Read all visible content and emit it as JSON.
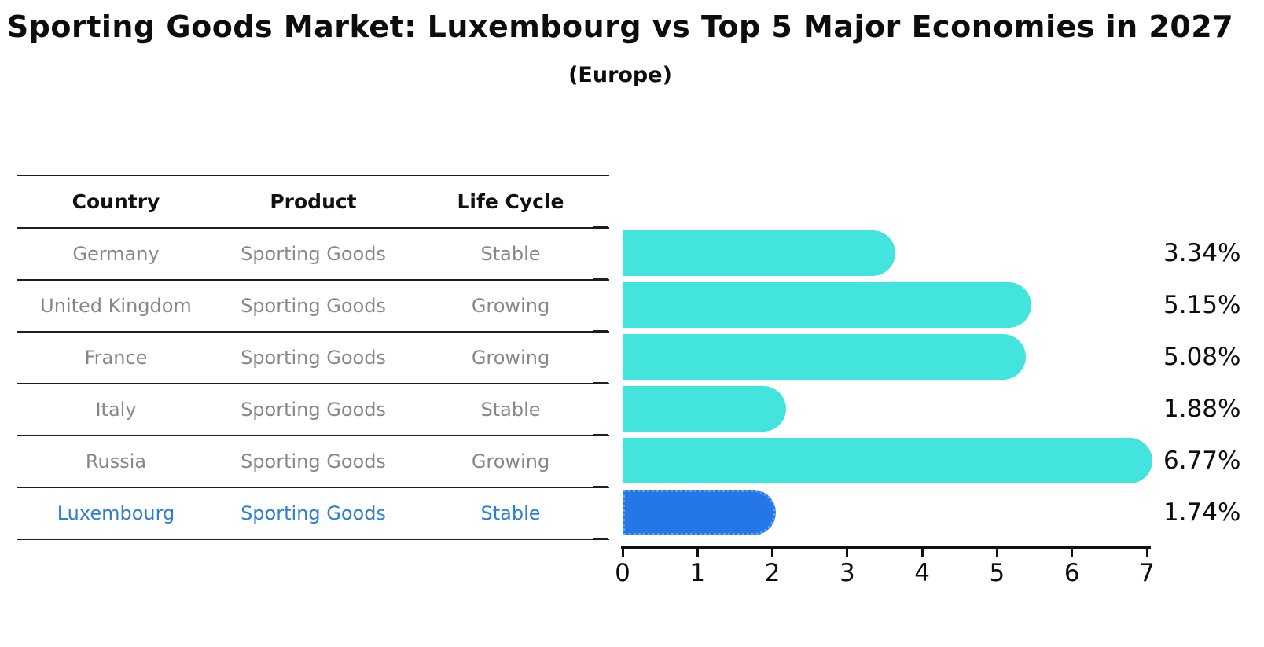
{
  "title": "Sporting Goods Market: Luxembourg vs Top 5 Major Economies in 2027",
  "subtitle": "(Europe)",
  "table": {
    "headers": [
      "Country",
      "Product",
      "Life Cycle"
    ],
    "rows": [
      {
        "country": "Germany",
        "product": "Sporting Goods",
        "life_cycle": "Stable",
        "highlighted": false
      },
      {
        "country": "United Kingdom",
        "product": "Sporting Goods",
        "life_cycle": "Growing",
        "highlighted": false
      },
      {
        "country": "France",
        "product": "Sporting Goods",
        "life_cycle": "Growing",
        "highlighted": false
      },
      {
        "country": "Italy",
        "product": "Sporting Goods",
        "life_cycle": "Stable",
        "highlighted": false
      },
      {
        "country": "Russia",
        "product": "Sporting Goods",
        "life_cycle": "Growing",
        "highlighted": false
      },
      {
        "country": "Luxembourg",
        "product": "Sporting Goods",
        "life_cycle": "Stable",
        "highlighted": true
      }
    ]
  },
  "chart_data": {
    "type": "bar",
    "orientation": "horizontal",
    "categories": [
      "Germany",
      "United Kingdom",
      "France",
      "Italy",
      "Russia",
      "Luxembourg"
    ],
    "values": [
      3.34,
      5.15,
      5.08,
      1.88,
      6.77,
      1.74
    ],
    "labels": [
      "3.34%",
      "5.15%",
      "5.08%",
      "1.88%",
      "6.77%",
      "1.74%"
    ],
    "highlight_index": 5,
    "xlim": [
      0,
      7
    ],
    "x_tick_labels": [
      "0",
      "1",
      "2",
      "3",
      "4",
      "5",
      "6",
      "7"
    ],
    "grid": false,
    "legend": false,
    "bar_color": "#43e4de",
    "highlight_bar_color": "#2577e8",
    "highlight_text_color": "#2e7fd2"
  }
}
